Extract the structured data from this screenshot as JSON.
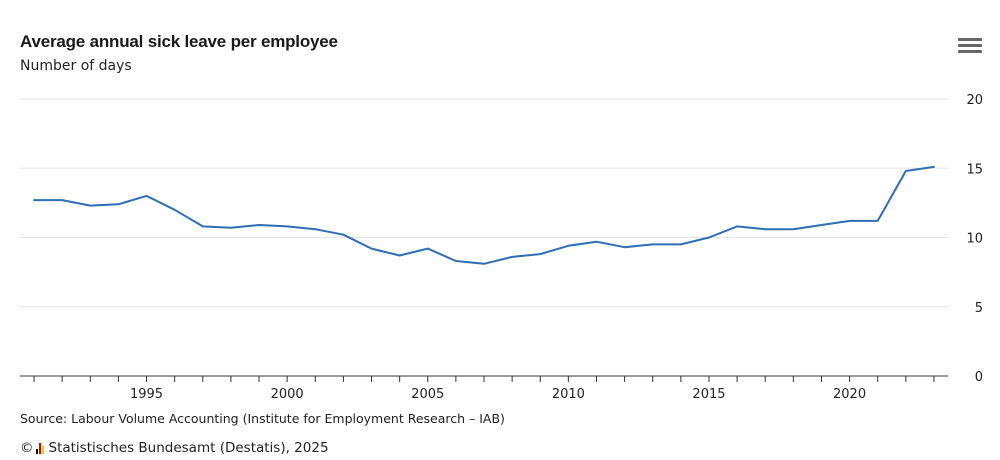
{
  "header": {
    "title": "Average annual sick leave per employee",
    "subtitle": "Number of days"
  },
  "menu_icon": "hamburger-menu-icon",
  "source": "Source: Labour Volume Accounting (Institute for Employment Research – IAB)",
  "footer": {
    "copyright_symbol": "©",
    "text": "Statistisches Bundesamt (Destatis), 2025",
    "logo_colors": [
      "#000000",
      "#dd0000",
      "#ffcc00"
    ]
  },
  "colors": {
    "line": "#2f6db5",
    "grid": "#e6e6e6",
    "axis": "#333333"
  },
  "chart_data": {
    "type": "line",
    "title": "Average annual sick leave per employee",
    "ylabel": "Number of days",
    "xlabel": "",
    "x": [
      1991,
      1992,
      1993,
      1994,
      1995,
      1996,
      1997,
      1998,
      1999,
      2000,
      2001,
      2002,
      2003,
      2004,
      2005,
      2006,
      2007,
      2008,
      2009,
      2010,
      2011,
      2012,
      2013,
      2014,
      2015,
      2016,
      2017,
      2018,
      2019,
      2020,
      2021,
      2022,
      2023
    ],
    "series": [
      {
        "values": [
          12.7,
          12.7,
          12.3,
          12.4,
          13.0,
          12.0,
          10.8,
          10.7,
          10.9,
          10.8,
          10.6,
          10.2,
          9.2,
          8.7,
          9.2,
          8.3,
          8.1,
          8.6,
          8.8,
          9.4,
          9.7,
          9.3,
          9.5,
          9.5,
          10.0,
          10.8,
          10.6,
          10.6,
          10.9,
          11.2,
          11.2,
          14.8,
          15.1
        ]
      }
    ],
    "xlim": [
      1990.5,
      2023.5
    ],
    "ylim": [
      0,
      20
    ],
    "y_ticks": [
      0,
      5,
      10,
      15,
      20
    ],
    "x_tick_labels": [
      1995,
      2000,
      2005,
      2010,
      2015,
      2020
    ],
    "grid": true,
    "y_axis_position": "right",
    "legend": "none"
  }
}
